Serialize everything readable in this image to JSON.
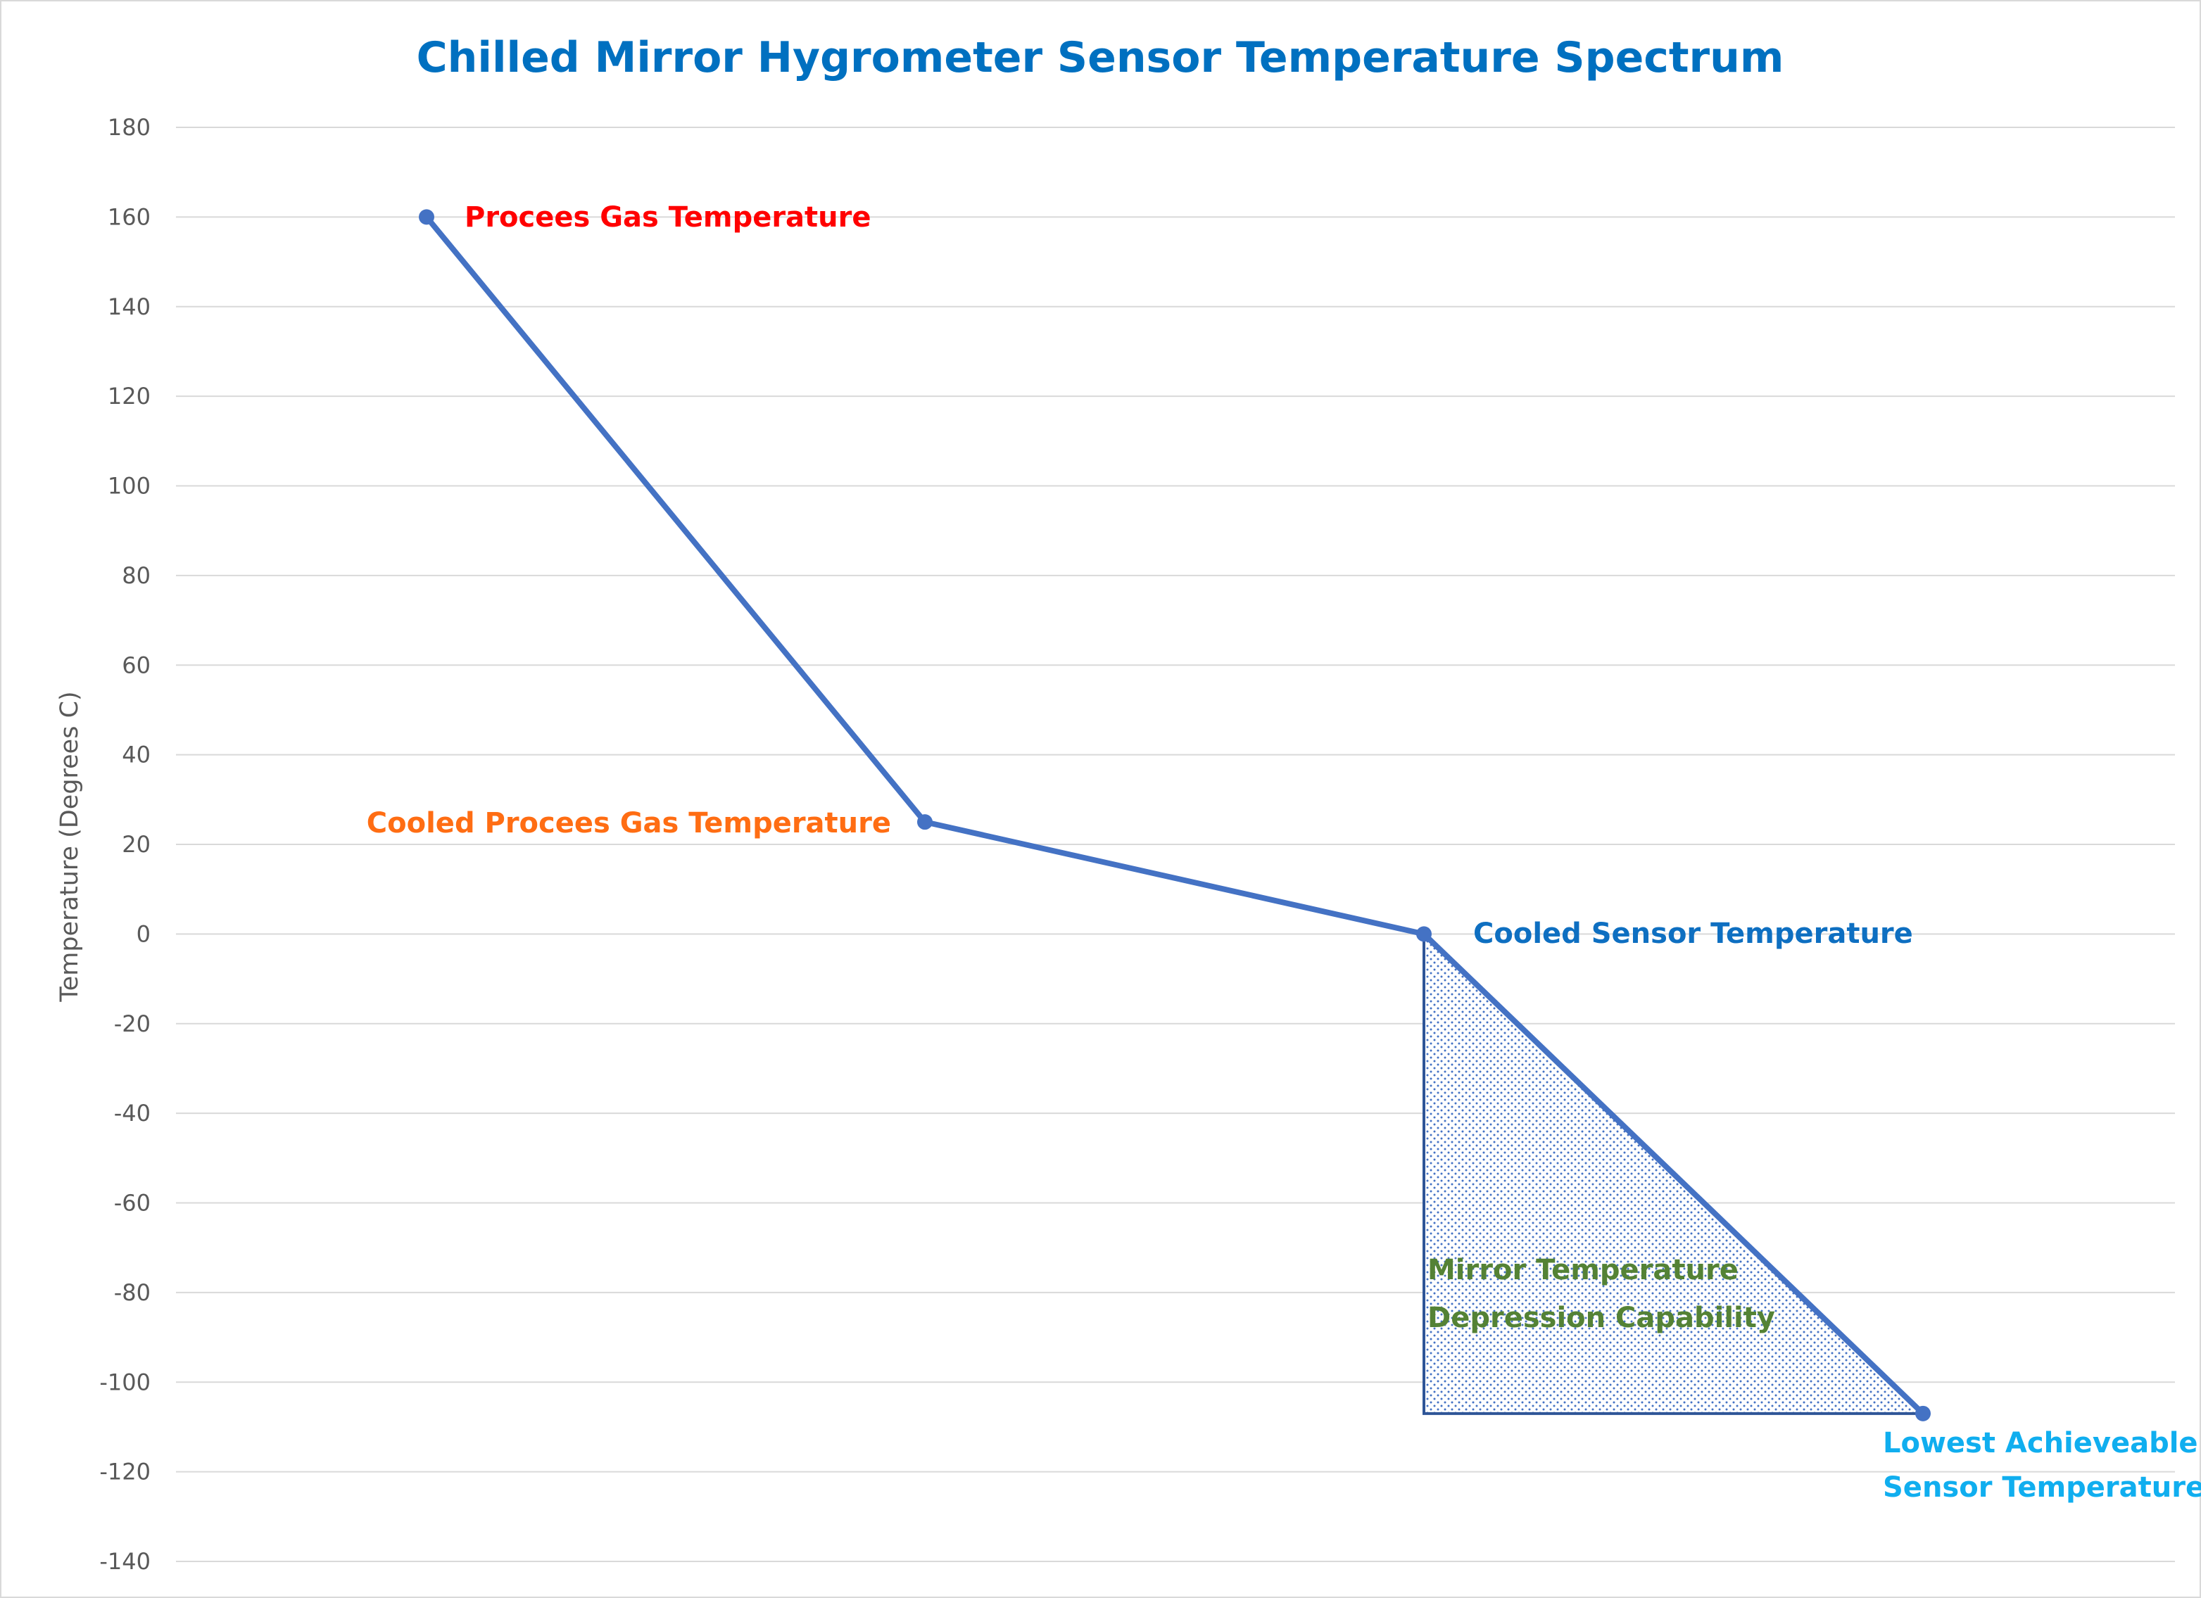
{
  "chart_data": {
    "type": "line",
    "title": "Chilled Mirror Hygrometer Sensor Temperature Spectrum",
    "xlabel": "",
    "ylabel": "Temperature (Degrees C)",
    "ylim": [
      -140,
      180
    ],
    "yticks": [
      "180",
      "160",
      "140",
      "120",
      "100",
      "80",
      "60",
      "40",
      "20",
      "0",
      "-20",
      "-40",
      "-60",
      "-80",
      "-100",
      "-120",
      "-140"
    ],
    "grid": true,
    "legend": "none",
    "x": [
      1,
      2,
      3,
      4
    ],
    "series": [
      {
        "values": [
          160,
          25,
          0,
          -107
        ],
        "color": "#4472c4"
      }
    ],
    "point_labels": [
      {
        "text": "Procees Gas Temperature",
        "color": "#ff0000"
      },
      {
        "text": "Cooled Procees Gas Temperature",
        "color": "#ff6d13"
      },
      {
        "text": "Cooled Sensor Temperature",
        "color": "#0e6fc1"
      },
      {
        "text": "Lowest Achieveable Sensor Temperature",
        "color": "#10aeef"
      }
    ],
    "annotations": [
      {
        "text": "Mirror Temperature Depression Capability",
        "color": "#548235",
        "region": "shaded triangle from x=3, y=0 down to y=-107 between x=3 and x=4",
        "fill_color": "#4472c4",
        "fill_pattern": "dotted"
      }
    ]
  }
}
